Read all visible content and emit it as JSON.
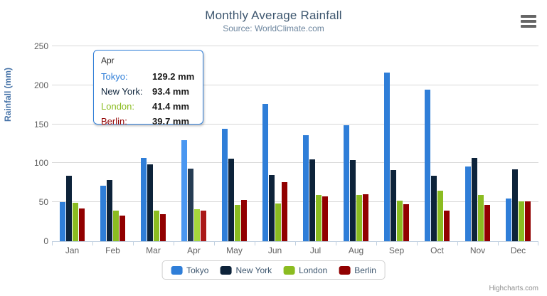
{
  "header": {
    "title": "Monthly Average Rainfall",
    "subtitle": "Source: WorldClimate.com"
  },
  "icons": {
    "menu": "hamburger-menu-icon"
  },
  "colors": {
    "tokyo": "#2f7ed8",
    "new_york": "#0d233a",
    "london": "#8bbc21",
    "berlin": "#910000",
    "grid": "#D8D8D8",
    "axis_line": "#C0D0E0",
    "title": "#3E576F",
    "subtitle": "#6D869F",
    "axis_label": "#606060",
    "tooltip_border": "#2f7ed8"
  },
  "chart_data": {
    "type": "bar",
    "title": "Monthly Average Rainfall",
    "subtitle": "Source: WorldClimate.com",
    "xlabel": "",
    "ylabel": "Rainfall (mm)",
    "ylim": [
      0,
      250
    ],
    "yticks": [
      0,
      50,
      100,
      150,
      200,
      250
    ],
    "grid": true,
    "legend_position": "bottom",
    "hovered_category": "Apr",
    "categories": [
      "Jan",
      "Feb",
      "Mar",
      "Apr",
      "May",
      "Jun",
      "Jul",
      "Aug",
      "Sep",
      "Oct",
      "Nov",
      "Dec"
    ],
    "series": [
      {
        "name": "Tokyo",
        "color": "#2f7ed8",
        "hover_color": "#4a97f1",
        "values": [
          49.9,
          71.5,
          106.4,
          129.2,
          144.0,
          176.0,
          135.6,
          148.5,
          216.4,
          194.1,
          95.6,
          54.4
        ]
      },
      {
        "name": "New York",
        "color": "#0d233a",
        "hover_color": "#263c53",
        "values": [
          83.6,
          78.8,
          98.5,
          93.4,
          106.0,
          84.5,
          105.0,
          104.3,
          91.2,
          83.5,
          106.6,
          92.3
        ]
      },
      {
        "name": "London",
        "color": "#8bbc21",
        "hover_color": "#a5d63b",
        "values": [
          48.9,
          38.8,
          39.3,
          41.4,
          47.0,
          48.3,
          59.0,
          59.6,
          52.4,
          65.2,
          59.3,
          51.2
        ]
      },
      {
        "name": "Berlin",
        "color": "#910000",
        "hover_color": "#aa1919",
        "values": [
          42.4,
          33.2,
          34.5,
          39.7,
          52.6,
          75.5,
          57.4,
          60.4,
          47.6,
          39.1,
          46.8,
          51.1
        ]
      }
    ]
  },
  "tooltip": {
    "header": "Apr",
    "rows": [
      {
        "label": "Tokyo:",
        "value": "129.2 mm",
        "color": "#2f7ed8"
      },
      {
        "label": "New York:",
        "value": "93.4 mm",
        "color": "#0d233a"
      },
      {
        "label": "London:",
        "value": "41.4 mm",
        "color": "#8bbc21"
      },
      {
        "label": "Berlin:",
        "value": "39.7 mm",
        "color": "#910000"
      }
    ]
  },
  "legend": {
    "items": [
      {
        "label": "Tokyo",
        "color": "#2f7ed8"
      },
      {
        "label": "New York",
        "color": "#0d233a"
      },
      {
        "label": "London",
        "color": "#8bbc21"
      },
      {
        "label": "Berlin",
        "color": "#910000"
      }
    ]
  },
  "credits": {
    "text": "Highcharts.com"
  }
}
